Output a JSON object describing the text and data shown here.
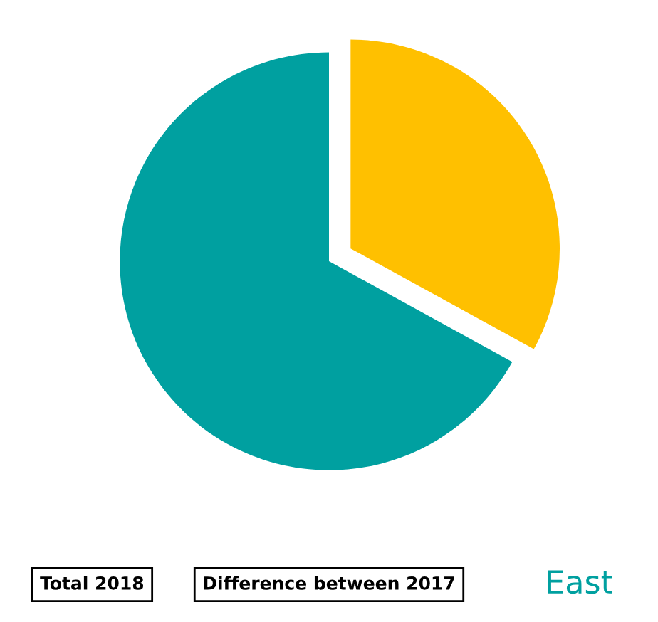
{
  "chart_data": {
    "type": "pie",
    "categories": [
      null,
      null
    ],
    "values": [
      33,
      67
    ],
    "colors": [
      "#ffc000",
      "#00a0a0"
    ],
    "annotations": [
      "Total 2018",
      "Difference between 2017",
      "East"
    ]
  }
}
